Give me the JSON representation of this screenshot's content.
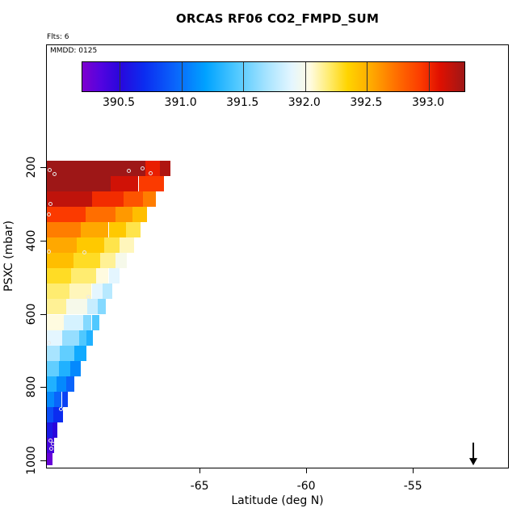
{
  "title": "ORCAS RF06 CO2_FMPD_SUM",
  "annotations": {
    "flights": "Flts: 6",
    "mmdd": "MMDD: 0125"
  },
  "chart_data": {
    "type": "heatmap",
    "title": "ORCAS RF06 CO2_FMPD_SUM",
    "xlabel": "Latitude (deg N)",
    "ylabel": "PSXC (mbar)",
    "x_axis": {
      "range": [
        -72.2,
        -50.5
      ],
      "ticks": [
        {
          "v": -65,
          "t": "-65"
        },
        {
          "v": -60,
          "t": "-60"
        },
        {
          "v": -55,
          "t": "-55"
        }
      ]
    },
    "y_axis": {
      "range": [
        180,
        1012
      ],
      "reversed": true,
      "ticks": [
        {
          "v": 200,
          "t": "200"
        },
        {
          "v": 400,
          "t": "400"
        },
        {
          "v": 600,
          "t": "600"
        },
        {
          "v": 800,
          "t": "800"
        },
        {
          "v": 1000,
          "t": "1000"
        }
      ]
    },
    "colorbar": {
      "range": [
        390.2,
        393.3
      ],
      "ticks": [
        {
          "v": 390.5,
          "t": "390.5"
        },
        {
          "v": 391.0,
          "t": "391.0"
        },
        {
          "v": 391.5,
          "t": "391.5"
        },
        {
          "v": 392.0,
          "t": "392.0"
        },
        {
          "v": 392.5,
          "t": "392.5"
        },
        {
          "v": 393.0,
          "t": "393.0"
        }
      ],
      "stops": [
        [
          390.2,
          "#7E00CE"
        ],
        [
          390.35,
          "#5304E0"
        ],
        [
          390.5,
          "#2A06DC"
        ],
        [
          390.7,
          "#0B2CF0"
        ],
        [
          390.95,
          "#0A64FB"
        ],
        [
          391.2,
          "#00A2FF"
        ],
        [
          391.45,
          "#4FC8FF"
        ],
        [
          391.7,
          "#A8E4FF"
        ],
        [
          391.9,
          "#E4F6FF"
        ],
        [
          392.05,
          "#FFFBE0"
        ],
        [
          392.2,
          "#FFEC70"
        ],
        [
          392.35,
          "#FFD400"
        ],
        [
          392.55,
          "#FFA800"
        ],
        [
          392.75,
          "#FF6E00"
        ],
        [
          392.95,
          "#FB3A00"
        ],
        [
          393.1,
          "#E01000"
        ],
        [
          393.3,
          "#9E1717"
        ]
      ]
    },
    "rows": [
      {
        "p": [
          180,
          222
        ],
        "cells": [
          [
            -72.2,
            -67.6,
            393.3
          ],
          [
            -67.6,
            -66.9,
            393.05
          ],
          [
            -66.9,
            -66.4,
            393.25
          ]
        ]
      },
      {
        "p": [
          222,
          264
        ],
        "cells": [
          [
            -72.2,
            -69.2,
            393.3
          ],
          [
            -69.2,
            -67.9,
            393.15
          ],
          [
            -67.9,
            -66.7,
            392.95
          ]
        ]
      },
      {
        "p": [
          264,
          306
        ],
        "cells": [
          [
            -72.2,
            -70.1,
            393.2
          ],
          [
            -70.1,
            -68.6,
            393.0
          ],
          [
            -68.6,
            -67.7,
            392.85
          ],
          [
            -67.7,
            -67.1,
            392.7
          ]
        ]
      },
      {
        "p": [
          306,
          348
        ],
        "cells": [
          [
            -72.2,
            -70.4,
            392.95
          ],
          [
            -70.4,
            -69.0,
            392.75
          ],
          [
            -69.0,
            -68.2,
            392.6
          ],
          [
            -68.2,
            -67.5,
            392.45
          ]
        ]
      },
      {
        "p": [
          348,
          390
        ],
        "cells": [
          [
            -72.2,
            -70.6,
            392.7
          ],
          [
            -70.6,
            -69.3,
            392.55
          ],
          [
            -69.3,
            -68.5,
            392.4
          ],
          [
            -68.5,
            -67.8,
            392.25
          ]
        ]
      },
      {
        "p": [
          390,
          432
        ],
        "cells": [
          [
            -72.2,
            -70.8,
            392.55
          ],
          [
            -70.8,
            -69.5,
            392.4
          ],
          [
            -69.5,
            -68.8,
            392.25
          ],
          [
            -68.8,
            -68.1,
            392.1
          ]
        ]
      },
      {
        "p": [
          432,
          474
        ],
        "cells": [
          [
            -72.2,
            -70.95,
            392.45
          ],
          [
            -70.95,
            -69.7,
            392.3
          ],
          [
            -69.7,
            -69.0,
            392.15
          ],
          [
            -69.0,
            -68.45,
            392.0
          ]
        ]
      },
      {
        "p": [
          474,
          516
        ],
        "cells": [
          [
            -72.2,
            -71.05,
            392.3
          ],
          [
            -71.05,
            -69.9,
            392.2
          ],
          [
            -69.9,
            -69.3,
            392.05
          ],
          [
            -69.3,
            -68.8,
            391.9
          ]
        ]
      },
      {
        "p": [
          516,
          558
        ],
        "cells": [
          [
            -72.2,
            -71.15,
            392.2
          ],
          [
            -71.15,
            -70.1,
            392.1
          ],
          [
            -70.1,
            -69.6,
            391.9
          ],
          [
            -69.6,
            -69.15,
            391.75
          ]
        ]
      },
      {
        "p": [
          558,
          600
        ],
        "cells": [
          [
            -72.2,
            -71.3,
            392.15
          ],
          [
            -71.3,
            -70.3,
            392.0
          ],
          [
            -70.3,
            -69.8,
            391.8
          ],
          [
            -69.8,
            -69.45,
            391.6
          ]
        ]
      },
      {
        "p": [
          600,
          642
        ],
        "cells": [
          [
            -72.2,
            -71.4,
            392.05
          ],
          [
            -71.4,
            -70.5,
            391.85
          ],
          [
            -70.5,
            -70.1,
            391.6
          ],
          [
            -70.1,
            -69.75,
            391.45
          ]
        ]
      },
      {
        "p": [
          642,
          684
        ],
        "cells": [
          [
            -72.2,
            -71.5,
            391.9
          ],
          [
            -71.5,
            -70.7,
            391.65
          ],
          [
            -70.7,
            -70.35,
            391.45
          ],
          [
            -70.35,
            -70.05,
            391.3
          ]
        ]
      },
      {
        "p": [
          684,
          726
        ],
        "cells": [
          [
            -72.2,
            -71.6,
            391.7
          ],
          [
            -71.6,
            -70.9,
            391.5
          ],
          [
            -70.9,
            -70.35,
            391.25
          ]
        ]
      },
      {
        "p": [
          726,
          768
        ],
        "cells": [
          [
            -72.2,
            -71.65,
            391.5
          ],
          [
            -71.65,
            -71.1,
            391.3
          ],
          [
            -71.1,
            -70.6,
            391.1
          ]
        ]
      },
      {
        "p": [
          768,
          810
        ],
        "cells": [
          [
            -72.2,
            -71.75,
            391.3
          ],
          [
            -71.75,
            -71.3,
            391.1
          ],
          [
            -71.3,
            -70.9,
            390.95
          ]
        ]
      },
      {
        "p": [
          810,
          852
        ],
        "cells": [
          [
            -72.2,
            -71.85,
            391.1
          ],
          [
            -71.85,
            -71.5,
            390.95
          ],
          [
            -71.5,
            -71.2,
            390.8
          ]
        ]
      },
      {
        "p": [
          852,
          894
        ],
        "cells": [
          [
            -72.2,
            -71.9,
            390.85
          ],
          [
            -71.9,
            -71.45,
            390.7
          ]
        ]
      },
      {
        "p": [
          894,
          936
        ],
        "cells": [
          [
            -72.2,
            -71.95,
            390.6
          ],
          [
            -71.95,
            -71.7,
            390.5
          ]
        ]
      },
      {
        "p": [
          936,
          978
        ],
        "cells": [
          [
            -72.2,
            -71.85,
            390.4
          ]
        ]
      },
      {
        "p": [
          978,
          1012
        ],
        "cells": [
          [
            -72.2,
            -71.95,
            390.28
          ]
        ]
      }
    ],
    "points": [
      [
        -72.08,
        205
      ],
      [
        -71.85,
        216
      ],
      [
        -68.35,
        208
      ],
      [
        -67.7,
        200
      ],
      [
        -67.35,
        214
      ],
      [
        -72.05,
        298
      ],
      [
        -72.1,
        326
      ],
      [
        -70.45,
        430
      ],
      [
        -72.1,
        428
      ],
      [
        -70.25,
        552
      ],
      [
        -72.1,
        678
      ],
      [
        -71.55,
        858
      ],
      [
        -72.05,
        943
      ],
      [
        -71.9,
        952
      ],
      [
        -72.0,
        966
      ]
    ],
    "arrow": {
      "lat": -52.2,
      "p_from": 950,
      "p_to": 1012
    }
  }
}
